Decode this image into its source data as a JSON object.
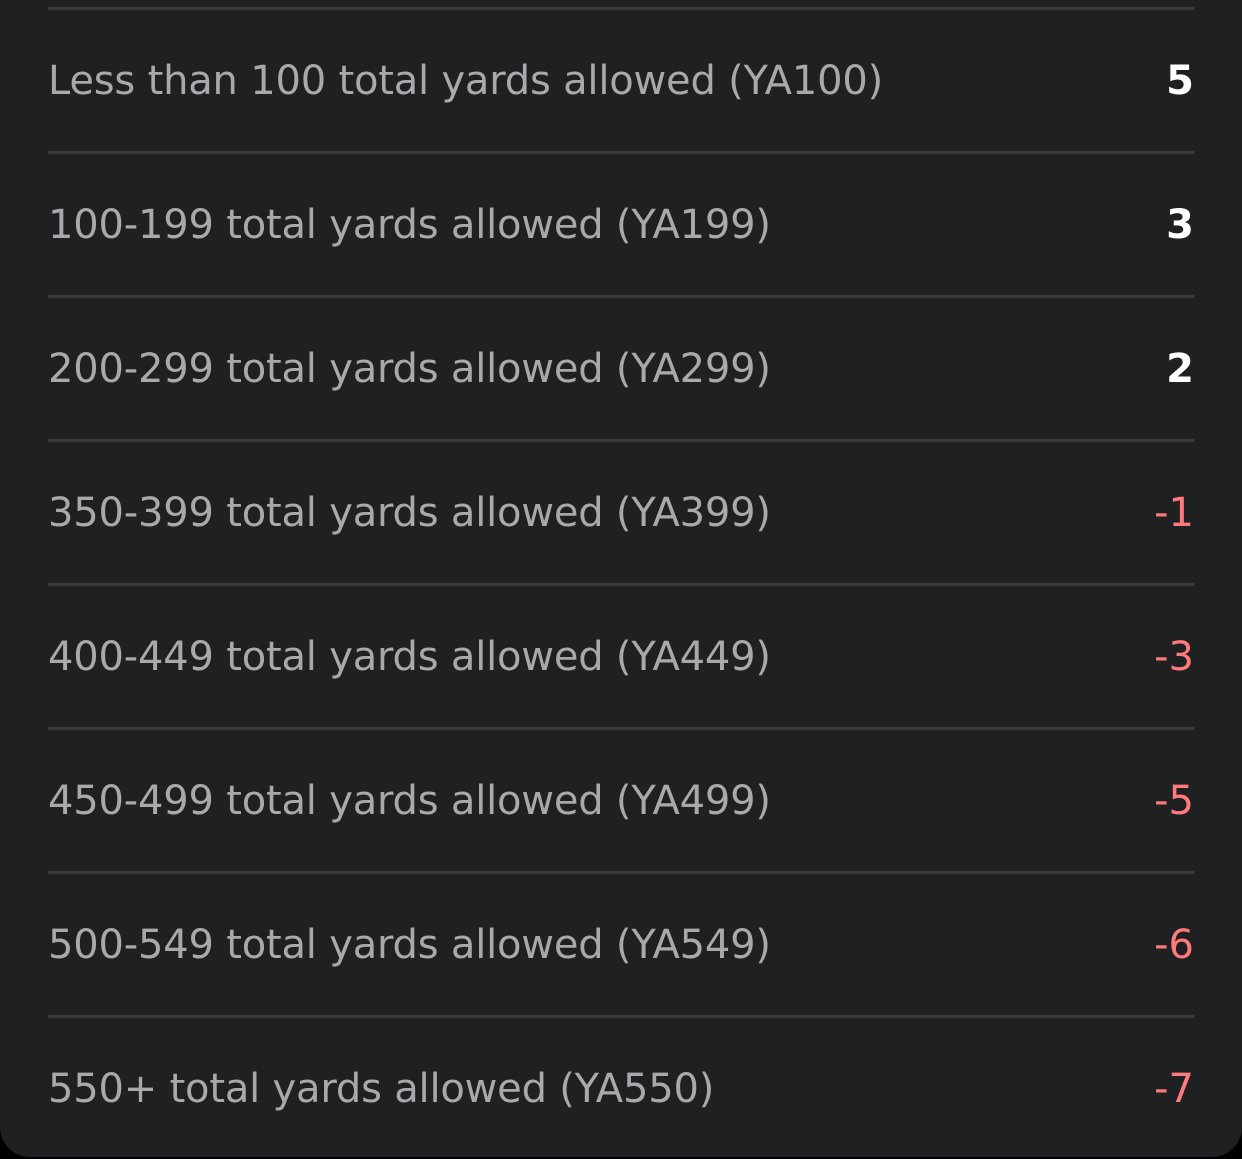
{
  "colors": {
    "background": "#1f2022",
    "divider": "#3a3b3e",
    "label": "#a7a9ad",
    "positive": "#ffffff",
    "negative": "#ff7a7a"
  },
  "rows": [
    {
      "label": "Less than 100 total yards allowed (YA100)",
      "points": "5"
    },
    {
      "label": "100-199 total yards allowed (YA199)",
      "points": "3"
    },
    {
      "label": "200-299 total yards allowed (YA299)",
      "points": "2"
    },
    {
      "label": "350-399 total yards allowed (YA399)",
      "points": "-1"
    },
    {
      "label": "400-449 total yards allowed (YA449)",
      "points": "-3"
    },
    {
      "label": "450-499 total yards allowed (YA499)",
      "points": "-5"
    },
    {
      "label": "500-549 total yards allowed (YA549)",
      "points": "-6"
    },
    {
      "label": "550+ total yards allowed (YA550)",
      "points": "-7"
    }
  ]
}
